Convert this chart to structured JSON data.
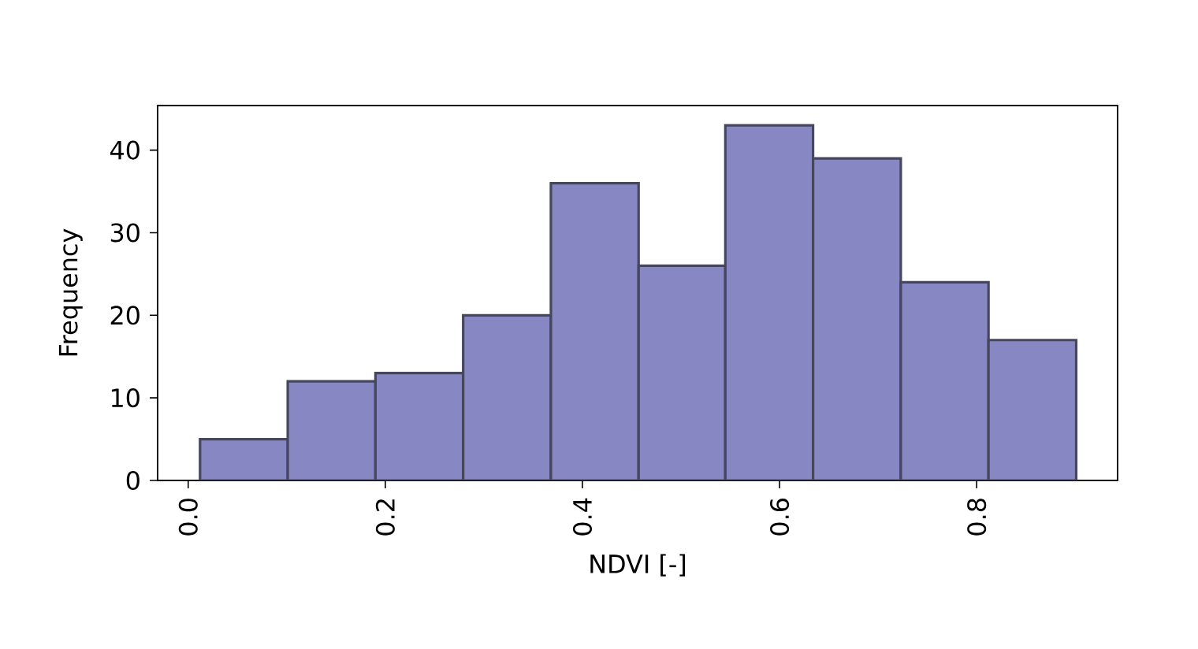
{
  "chart_data": {
    "type": "histogram",
    "xlabel": "NDVI [-]",
    "ylabel": "Frequency",
    "bins": [
      0.012,
      0.101,
      0.19,
      0.279,
      0.368,
      0.457,
      0.545,
      0.634,
      0.723,
      0.812,
      0.901
    ],
    "values": [
      5,
      12,
      13,
      20,
      36,
      26,
      43,
      39,
      24,
      17
    ],
    "color": "#8687c3",
    "xlim": [
      -0.031,
      0.943
    ],
    "ylim": [
      0,
      45.4
    ],
    "xticks": [
      {
        "value": 0.0,
        "label": "0.0"
      },
      {
        "value": 0.2,
        "label": "0.2"
      },
      {
        "value": 0.4,
        "label": "0.4"
      },
      {
        "value": 0.6,
        "label": "0.6"
      },
      {
        "value": 0.8,
        "label": "0.8"
      }
    ],
    "yticks": [
      0,
      10,
      20,
      30,
      40
    ],
    "grid": false
  }
}
